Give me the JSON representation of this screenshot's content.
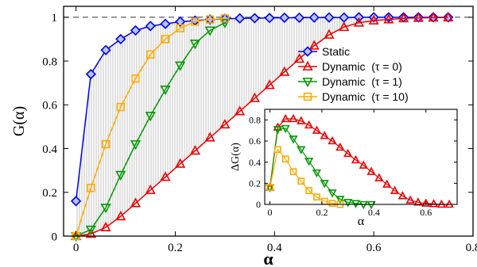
{
  "chart_data": [
    {
      "type": "line",
      "xlabel": "α",
      "ylabel": "G(α)",
      "xlim": [
        -0.025,
        0.8
      ],
      "ylim": [
        0,
        1.05
      ],
      "xticks": [
        0,
        0.2,
        0.4,
        0.6,
        0.8
      ],
      "xtick_labels": [
        "0",
        "0.2",
        "0.4",
        "0.6",
        "0.8"
      ],
      "yticks": [
        0,
        0.2,
        0.4,
        0.6,
        0.8,
        1
      ],
      "ytick_labels": [
        "0",
        "0.2",
        "0.4",
        "0.6",
        "0.8",
        "1"
      ],
      "reference_line": {
        "y": 1,
        "style": "dashed"
      },
      "fill_between": {
        "upper": "Static",
        "lower": "Dynamic  (τ = 0)",
        "pattern": "vertical-hatch"
      },
      "legend_position": "center-right",
      "series": [
        {
          "name": "Static",
          "color": "#0000ee",
          "marker": "diamond",
          "x": [
            0,
            0.03,
            0.06,
            0.09,
            0.12,
            0.15,
            0.18,
            0.21,
            0.24,
            0.27,
            0.3,
            0.33,
            0.36,
            0.39,
            0.42,
            0.45,
            0.48,
            0.51,
            0.54,
            0.57,
            0.6,
            0.63,
            0.66,
            0.69,
            0.72,
            0.75
          ],
          "y": [
            0.16,
            0.74,
            0.85,
            0.9,
            0.94,
            0.96,
            0.97,
            0.98,
            0.985,
            0.99,
            0.993,
            0.995,
            0.996,
            0.997,
            0.998,
            0.998,
            0.999,
            0.999,
            0.999,
            1.0,
            1.0,
            1.0,
            1.0,
            1.0,
            1.0,
            1.0
          ]
        },
        {
          "name": "Dynamic  (τ = 0)",
          "color": "#ee0000",
          "marker": "triangle-up",
          "x": [
            0,
            0.03,
            0.06,
            0.09,
            0.12,
            0.15,
            0.18,
            0.21,
            0.24,
            0.27,
            0.3,
            0.33,
            0.36,
            0.39,
            0.42,
            0.45,
            0.48,
            0.51,
            0.54,
            0.57,
            0.6,
            0.63,
            0.66,
            0.69,
            0.72,
            0.75
          ],
          "y": [
            0,
            0.01,
            0.04,
            0.09,
            0.15,
            0.21,
            0.27,
            0.33,
            0.39,
            0.45,
            0.51,
            0.57,
            0.63,
            0.69,
            0.75,
            0.81,
            0.87,
            0.92,
            0.955,
            0.975,
            0.985,
            0.99,
            0.995,
            0.997,
            0.998,
            0.999
          ]
        },
        {
          "name": "Dynamic  (τ = 1)",
          "color": "#009900",
          "marker": "triangle-down",
          "x": [
            0,
            0.03,
            0.06,
            0.09,
            0.12,
            0.15,
            0.18,
            0.21,
            0.24,
            0.27,
            0.3
          ],
          "y": [
            0,
            0.03,
            0.13,
            0.28,
            0.42,
            0.55,
            0.67,
            0.78,
            0.88,
            0.94,
            0.975
          ]
        },
        {
          "name": "Dynamic  (τ = 10)",
          "color": "#ffaa00",
          "marker": "square",
          "x": [
            0,
            0.03,
            0.06,
            0.09,
            0.12,
            0.15,
            0.18,
            0.21,
            0.24,
            0.27,
            0.3
          ],
          "y": [
            0,
            0.22,
            0.42,
            0.59,
            0.72,
            0.83,
            0.9,
            0.95,
            0.98,
            0.99,
            0.995
          ]
        }
      ]
    },
    {
      "type": "line",
      "inset": true,
      "xlabel": "α",
      "ylabel": "ΔG(α)",
      "xlim": [
        -0.02,
        0.72
      ],
      "ylim": [
        0,
        0.9
      ],
      "xticks": [
        0,
        0.2,
        0.4,
        0.6
      ],
      "xtick_labels": [
        "0",
        "0.2",
        "0.4",
        "0.6"
      ],
      "yticks": [
        0,
        0.2,
        0.4,
        0.6,
        0.8
      ],
      "ytick_labels": [
        "0",
        "0.2",
        "0.4",
        "0.6",
        "0.8"
      ],
      "series": [
        {
          "name": "Dynamic  (τ = 0)",
          "color": "#ee0000",
          "marker": "triangle-up",
          "x": [
            0,
            0.03,
            0.06,
            0.09,
            0.12,
            0.15,
            0.18,
            0.21,
            0.24,
            0.27,
            0.3,
            0.33,
            0.36,
            0.39,
            0.42,
            0.45,
            0.48,
            0.51,
            0.54,
            0.57,
            0.6,
            0.63,
            0.66,
            0.69
          ],
          "y": [
            0.16,
            0.73,
            0.81,
            0.81,
            0.79,
            0.75,
            0.7,
            0.65,
            0.6,
            0.54,
            0.48,
            0.42,
            0.37,
            0.31,
            0.25,
            0.19,
            0.13,
            0.08,
            0.04,
            0.02,
            0.01,
            0.005,
            0.0,
            0.0
          ]
        },
        {
          "name": "Dynamic  (τ = 1)",
          "color": "#009900",
          "marker": "triangle-down",
          "x": [
            0,
            0.03,
            0.06,
            0.09,
            0.12,
            0.15,
            0.18,
            0.21,
            0.24,
            0.27,
            0.3,
            0.33,
            0.36,
            0.39
          ],
          "y": [
            0.16,
            0.71,
            0.72,
            0.62,
            0.52,
            0.41,
            0.3,
            0.2,
            0.11,
            0.05,
            0.02,
            0.01,
            0.0,
            0.0
          ]
        },
        {
          "name": "Dynamic  (τ = 10)",
          "color": "#ffaa00",
          "marker": "square",
          "x": [
            0,
            0.03,
            0.06,
            0.09,
            0.12,
            0.15,
            0.18,
            0.21,
            0.24,
            0.27
          ],
          "y": [
            0.16,
            0.52,
            0.43,
            0.31,
            0.22,
            0.13,
            0.07,
            0.03,
            0.01,
            0.0
          ]
        }
      ]
    }
  ]
}
